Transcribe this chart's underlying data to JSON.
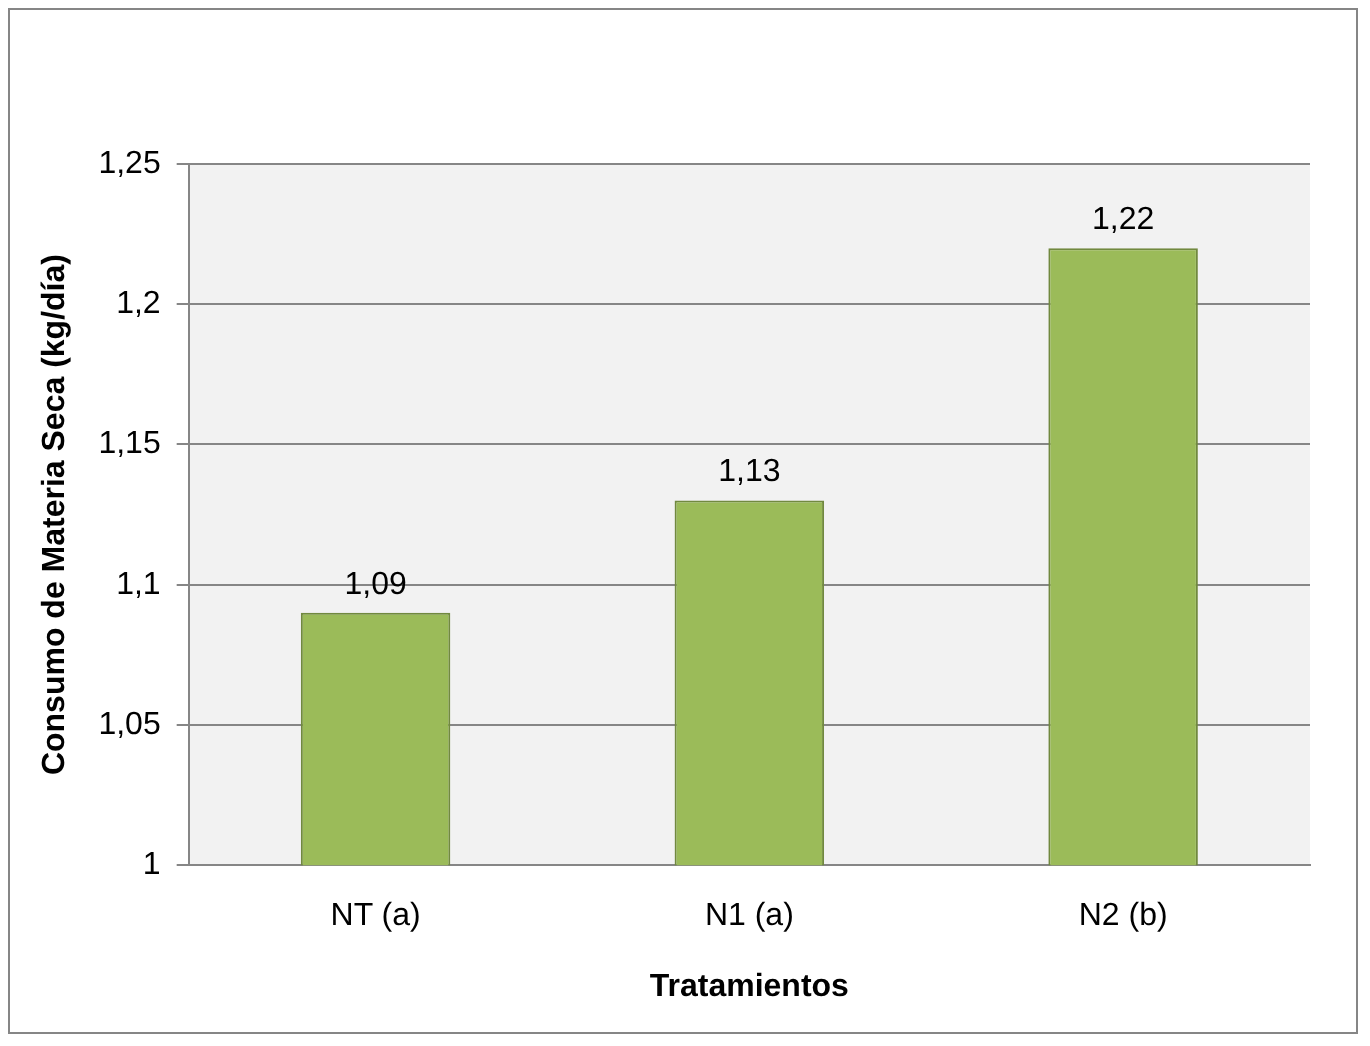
{
  "chart_data": {
    "type": "bar",
    "xlabel": "Tratamientos",
    "ylabel": "Consumo de Materia Seca (kg/día)",
    "categories": [
      "NT (a)",
      "N1 (a)",
      "N2 (b)"
    ],
    "series": [
      {
        "color": "#9bbb59",
        "values": [
          1.09,
          1.13,
          1.22
        ],
        "value_labels": [
          "1,09",
          "1,13",
          "1,22"
        ]
      }
    ],
    "ylim": [
      1,
      1.25
    ],
    "yticks": [
      {
        "value": 1,
        "label": "1"
      },
      {
        "value": 1.05,
        "label": "1,05"
      },
      {
        "value": 1.1,
        "label": "1,1"
      },
      {
        "value": 1.15,
        "label": "1,15"
      },
      {
        "value": 1.2,
        "label": "1,2"
      },
      {
        "value": 1.25,
        "label": "1,25"
      }
    ],
    "grid": "y",
    "legend": false
  }
}
